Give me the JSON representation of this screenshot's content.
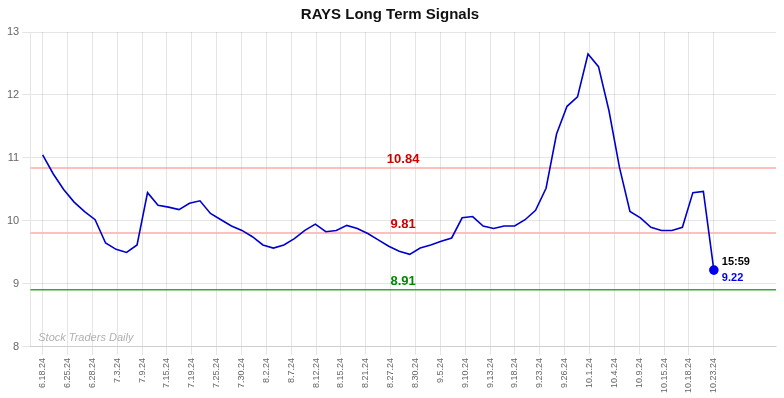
{
  "chart_data": {
    "type": "line",
    "title": "RAYS Long Term Signals",
    "x": [
      0,
      0.421875,
      0.84375,
      1.265625,
      1.6875,
      2.109375,
      2.53125,
      2.953125,
      3.375,
      3.796875,
      4.21875,
      4.640625,
      5.0625,
      5.484375,
      5.90625,
      6.328125,
      6.75,
      7.171875,
      7.59375,
      8.015625,
      8.4375,
      8.859375,
      9.28125,
      9.703125,
      10.125,
      10.546875,
      10.96875,
      11.390625,
      11.8125,
      12.234375,
      12.65625,
      13.078125,
      13.5,
      13.921875,
      14.34375,
      14.765625,
      15.1875,
      15.609375,
      16.03125,
      16.453125,
      16.875,
      17.296875,
      17.71875,
      18.140625,
      18.5625,
      18.984375,
      19.40625,
      19.828125,
      20.25,
      20.671875,
      21.09375,
      21.515625,
      21.9375,
      22.359375,
      22.78125,
      23.203125,
      23.625,
      24.046875,
      24.46875,
      24.890625,
      25.3125,
      25.734375,
      26.15625,
      26.578125,
      27
    ],
    "values": [
      11.05,
      10.75,
      10.5,
      10.3,
      10.15,
      10.02,
      9.65,
      9.55,
      9.5,
      9.62,
      10.45,
      10.25,
      10.22,
      10.18,
      10.28,
      10.32,
      10.12,
      10.02,
      9.92,
      9.85,
      9.75,
      9.62,
      9.57,
      9.62,
      9.72,
      9.85,
      9.95,
      9.83,
      9.85,
      9.93,
      9.88,
      9.8,
      9.7,
      9.6,
      9.52,
      9.47,
      9.57,
      9.62,
      9.68,
      9.73,
      10.05,
      10.07,
      9.92,
      9.88,
      9.92,
      9.92,
      10.02,
      10.17,
      10.52,
      11.38,
      11.82,
      11.97,
      12.65,
      12.45,
      11.75,
      10.85,
      10.15,
      10.05,
      9.9,
      9.85,
      9.85,
      9.9,
      10.45,
      10.47,
      9.22
    ],
    "color": "#0000cc",
    "xlim": [
      -0.5,
      29.5
    ],
    "xticks": [
      {
        "value": 0,
        "label": "6.18.24"
      },
      {
        "value": 1,
        "label": "6.25.24"
      },
      {
        "value": 2,
        "label": "6.28.24"
      },
      {
        "value": 3,
        "label": "7.3.24"
      },
      {
        "value": 4,
        "label": "7.9.24"
      },
      {
        "value": 5,
        "label": "7.15.24"
      },
      {
        "value": 6,
        "label": "7.19.24"
      },
      {
        "value": 7,
        "label": "7.25.24"
      },
      {
        "value": 8,
        "label": "7.30.24"
      },
      {
        "value": 9,
        "label": "8.2.24"
      },
      {
        "value": 10,
        "label": "8.7.24"
      },
      {
        "value": 11,
        "label": "8.12.24"
      },
      {
        "value": 12,
        "label": "8.15.24"
      },
      {
        "value": 13,
        "label": "8.21.24"
      },
      {
        "value": 14,
        "label": "8.27.24"
      },
      {
        "value": 15,
        "label": "8.30.24"
      },
      {
        "value": 16,
        "label": "9.5.24"
      },
      {
        "value": 17,
        "label": "9.10.24"
      },
      {
        "value": 18,
        "label": "9.13.24"
      },
      {
        "value": 19,
        "label": "9.18.24"
      },
      {
        "value": 20,
        "label": "9.23.24"
      },
      {
        "value": 21,
        "label": "9.26.24"
      },
      {
        "value": 22,
        "label": "10.1.24"
      },
      {
        "value": 23,
        "label": "10.4.24"
      },
      {
        "value": 24,
        "label": "10.9.24"
      },
      {
        "value": 25,
        "label": "10.15.24"
      },
      {
        "value": 26,
        "label": "10.18.24"
      },
      {
        "value": 27,
        "label": "10.23.24"
      }
    ],
    "ylim": [
      8,
      13
    ],
    "yticks": [
      8,
      9,
      10,
      11,
      12,
      13
    ],
    "grid": true,
    "reference_lines": [
      {
        "y": 10.84,
        "color": "#ffaaaa",
        "label": "10.84",
        "label_color": "#cc0000"
      },
      {
        "y": 9.81,
        "color": "#ffaaaa",
        "label": "9.81",
        "label_color": "#cc0000"
      },
      {
        "y": 8.91,
        "color": "#33aa33",
        "label": "8.91",
        "label_color": "#008800"
      }
    ],
    "annotations": [
      {
        "text": "15:59",
        "anchor": "last_point"
      },
      {
        "text": "9.22",
        "anchor": "last_point",
        "color": "#0000ee"
      },
      {
        "text": "Stock Traders Daily",
        "anchor": "watermark"
      }
    ]
  }
}
